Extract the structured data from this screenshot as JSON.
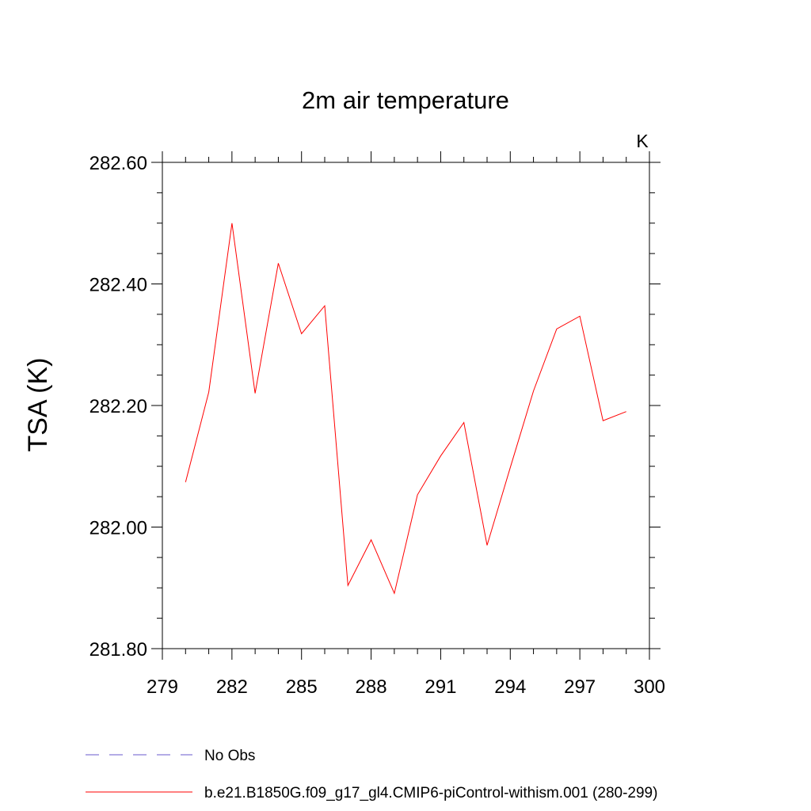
{
  "chart_data": {
    "type": "line",
    "title": "2m air temperature",
    "units_label": "K",
    "ylabel": "TSA  (K)",
    "xlabel": "",
    "xlim": [
      279,
      300
    ],
    "ylim": [
      281.8,
      282.6
    ],
    "x_ticks": [
      279,
      282,
      285,
      288,
      291,
      294,
      297,
      300
    ],
    "x_tick_labels": [
      "279",
      "282",
      "285",
      "288",
      "291",
      "294",
      "297",
      "300"
    ],
    "y_ticks": [
      281.8,
      282.0,
      282.2,
      282.4,
      282.6
    ],
    "y_tick_labels": [
      "281.80",
      "282.00",
      "282.20",
      "282.40",
      "282.60"
    ],
    "legend_position": "bottom",
    "series": [
      {
        "name": "b.e21.B1850G.f09_g17_gl4.CMIP6-piControl-withism.001 (280-299)",
        "color": "#ff0000",
        "style": "solid",
        "x": [
          280,
          281,
          282,
          283,
          284,
          285,
          286,
          287,
          288,
          289,
          290,
          291,
          292,
          293,
          294,
          295,
          296,
          297,
          298,
          299
        ],
        "values": [
          282.074,
          282.222,
          282.5,
          282.22,
          282.434,
          282.318,
          282.364,
          281.904,
          281.979,
          281.891,
          282.053,
          282.117,
          282.172,
          281.97,
          282.098,
          282.224,
          282.326,
          282.347,
          282.175,
          282.19
        ]
      }
    ],
    "legend": [
      {
        "label": "No Obs",
        "color": "#6a5acd",
        "style": "dashed"
      },
      {
        "label": "b.e21.B1850G.f09_g17_gl4.CMIP6-piControl-withism.001 (280-299)",
        "color": "#ff0000",
        "style": "solid"
      }
    ]
  }
}
